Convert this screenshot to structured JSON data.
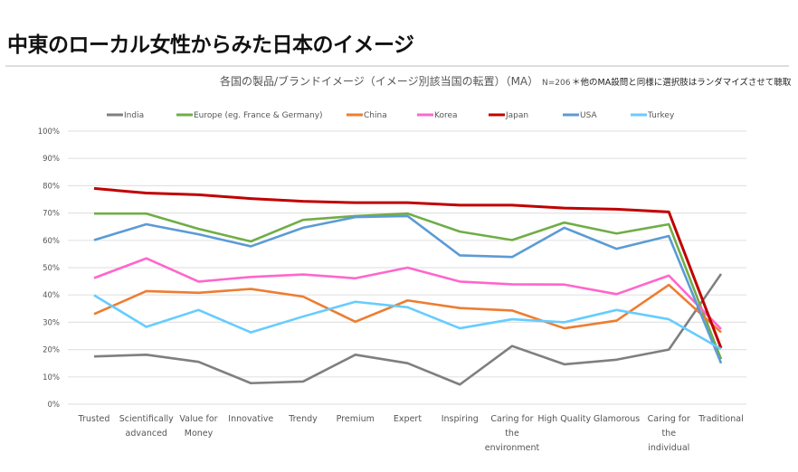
{
  "header": {
    "title": "中東のローカル女性からみた日本のイメージ",
    "subtitle": "各国の製品/ブランドイメージ（イメージ別該当国の転置）（MA）",
    "sample": "N=206",
    "note": "＊他のMA設問と同様に選択肢はランダマイズさせて聴取"
  },
  "chart_data": {
    "type": "line",
    "categories": [
      "Trusted",
      "Scientifically advanced",
      "Value for Money",
      "Innovative",
      "Trendy",
      "Premium",
      "Expert",
      "Inspiring",
      "Caring for the environment",
      "High Quality",
      "Glamorous",
      "Caring for the individual",
      "Traditional"
    ],
    "category_lines": [
      [
        "Trusted"
      ],
      [
        "Scientifically",
        "advanced"
      ],
      [
        "Value for",
        "Money"
      ],
      [
        "Innovative"
      ],
      [
        "Trendy"
      ],
      [
        "Premium"
      ],
      [
        "Expert"
      ],
      [
        "Inspiring"
      ],
      [
        "Caring for",
        "the",
        "environment"
      ],
      [
        "High Quality"
      ],
      [
        "Glamorous"
      ],
      [
        "Caring for",
        "the",
        "individual"
      ],
      [
        "Traditional"
      ]
    ],
    "ylim": [
      0,
      100
    ],
    "yticks": [
      "0%",
      "10%",
      "20%",
      "30%",
      "40%",
      "50%",
      "60%",
      "70%",
      "80%",
      "90%",
      "100%"
    ],
    "grid": true,
    "legend": "top",
    "series": [
      {
        "name": "India",
        "color": "#7f7f7f",
        "values": [
          17.5,
          18.1,
          15.5,
          7.7,
          8.3,
          18.1,
          15,
          7.2,
          21.3,
          14.6,
          16.3,
          20,
          47.7
        ]
      },
      {
        "name": "Europe (eg. France & Germany)",
        "color": "#70ad47",
        "values": [
          69.8,
          69.8,
          64.2,
          59.6,
          67.5,
          68.9,
          69.8,
          63.2,
          60.1,
          66.5,
          62.5,
          65.9,
          16.5
        ]
      },
      {
        "name": "China",
        "color": "#ed7d31",
        "values": [
          33,
          41.4,
          40.8,
          42.2,
          39.4,
          30.2,
          38,
          35.2,
          34.3,
          27.8,
          30.6,
          43.7,
          26.3
        ]
      },
      {
        "name": "Korea",
        "color": "#ff66cc",
        "values": [
          46.2,
          53.4,
          44.9,
          46.6,
          47.5,
          46.1,
          50,
          44.9,
          43.9,
          43.8,
          40.3,
          47.1,
          27.5
        ]
      },
      {
        "name": "Japan",
        "color": "#c00000",
        "values": [
          79,
          77.3,
          76.7,
          75.3,
          74.3,
          73.8,
          73.8,
          72.9,
          72.9,
          71.8,
          71.4,
          70.4,
          20.5
        ]
      },
      {
        "name": "USA",
        "color": "#5b9bd5",
        "values": [
          60.1,
          65.9,
          62.2,
          57.8,
          64.6,
          68.5,
          68.9,
          54.5,
          53.9,
          64.6,
          56.9,
          61.6,
          15
        ]
      },
      {
        "name": "Turkey",
        "color": "#66ccff",
        "values": [
          39.9,
          28.3,
          34.5,
          26.3,
          32.1,
          37.5,
          35.5,
          27.8,
          31.1,
          30,
          34.5,
          31.1,
          20.2
        ]
      }
    ]
  }
}
